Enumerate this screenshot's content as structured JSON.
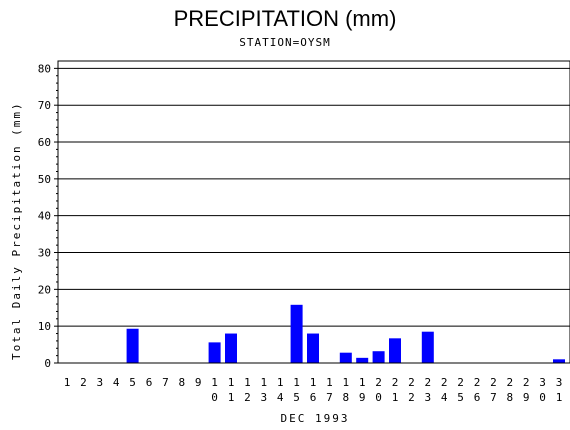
{
  "chart_data": {
    "type": "bar",
    "title": "PRECIPITATION (mm)",
    "subtitle": "STATION=OYSM",
    "ylabel": "Total Daily Precipitation (mm)",
    "xlabel": "DEC 1993",
    "ylim": [
      0,
      82
    ],
    "yticks": [
      0,
      10,
      20,
      30,
      40,
      50,
      60,
      70,
      80
    ],
    "grid": true,
    "bar_color": "#0000ff",
    "categories": [
      "1",
      "2",
      "3",
      "4",
      "5",
      "6",
      "7",
      "8",
      "9",
      "10",
      "11",
      "12",
      "13",
      "14",
      "15",
      "16",
      "17",
      "18",
      "19",
      "20",
      "21",
      "22",
      "23",
      "24",
      "25",
      "26",
      "27",
      "28",
      "29",
      "30",
      "31"
    ],
    "values": [
      0,
      0,
      0,
      0,
      9.3,
      0,
      0,
      0,
      0,
      5.6,
      8,
      0,
      0,
      0,
      15.8,
      8,
      0,
      2.8,
      1.4,
      3.2,
      6.7,
      0,
      8.5,
      0,
      0,
      0,
      0,
      0,
      0,
      0,
      1
    ]
  }
}
